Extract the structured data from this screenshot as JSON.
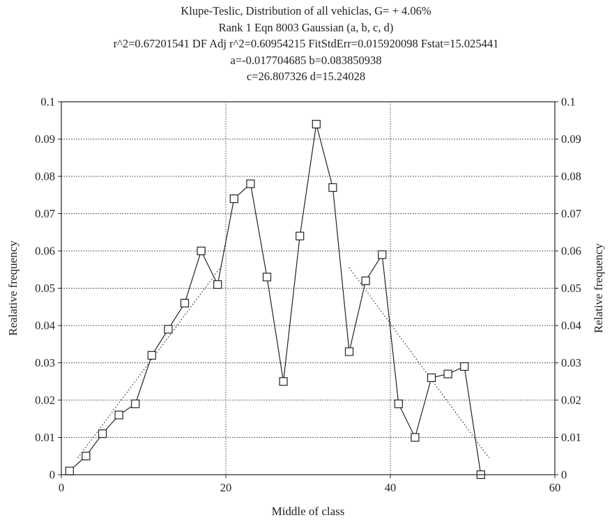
{
  "chart_data": {
    "type": "line",
    "title_lines": [
      "Klupe-Teslic, Distribution of all vehiclas, G= + 4.06%",
      "Rank 1 Eqn 8003 Gaussian (a, b, c, d)",
      "r^2=0.67201541 DF Adj r^2=0.60954215 FitStdErr=0.015920098 Fstat=15.025441",
      "a=-0.017704685 b=0.083850938",
      "c=26.807326 d=15.24028"
    ],
    "xlabel": "Middle of class",
    "ylabel": "Realative frequency",
    "ylabel_right": "Relative frequency",
    "xlim": [
      0,
      60
    ],
    "ylim": [
      0,
      0.1
    ],
    "x_ticks": [
      "0",
      "20",
      "40",
      "60"
    ],
    "y_ticks": [
      "0",
      "0.01",
      "0.02",
      "0.03",
      "0.04",
      "0.05",
      "0.06",
      "0.07",
      "0.08",
      "0.09",
      "0.1"
    ],
    "grid": true,
    "series": [
      {
        "style": "solid line with open square markers",
        "color": "#222222",
        "x": [
          1,
          3,
          5,
          7,
          9,
          11,
          13,
          15,
          17,
          19,
          21,
          23,
          25,
          27,
          29,
          31,
          33,
          35,
          37,
          39,
          41,
          43,
          45,
          47,
          49,
          51
        ],
        "y": [
          0.001,
          0.005,
          0.011,
          0.016,
          0.019,
          0.032,
          0.039,
          0.046,
          0.06,
          0.051,
          0.074,
          0.078,
          0.053,
          0.025,
          0.064,
          0.094,
          0.077,
          0.033,
          0.052,
          0.059,
          0.019,
          0.01,
          0.026,
          0.027,
          0.029,
          0.0
        ]
      },
      {
        "style": "dotted fitted curve",
        "color": "#333333",
        "segments": [
          {
            "x": [
              2,
              19.5
            ],
            "y": [
              0.0045,
              0.056
            ]
          },
          {
            "x": [
              35,
              52
            ],
            "y": [
              0.0555,
              0.0045
            ]
          }
        ]
      }
    ]
  }
}
